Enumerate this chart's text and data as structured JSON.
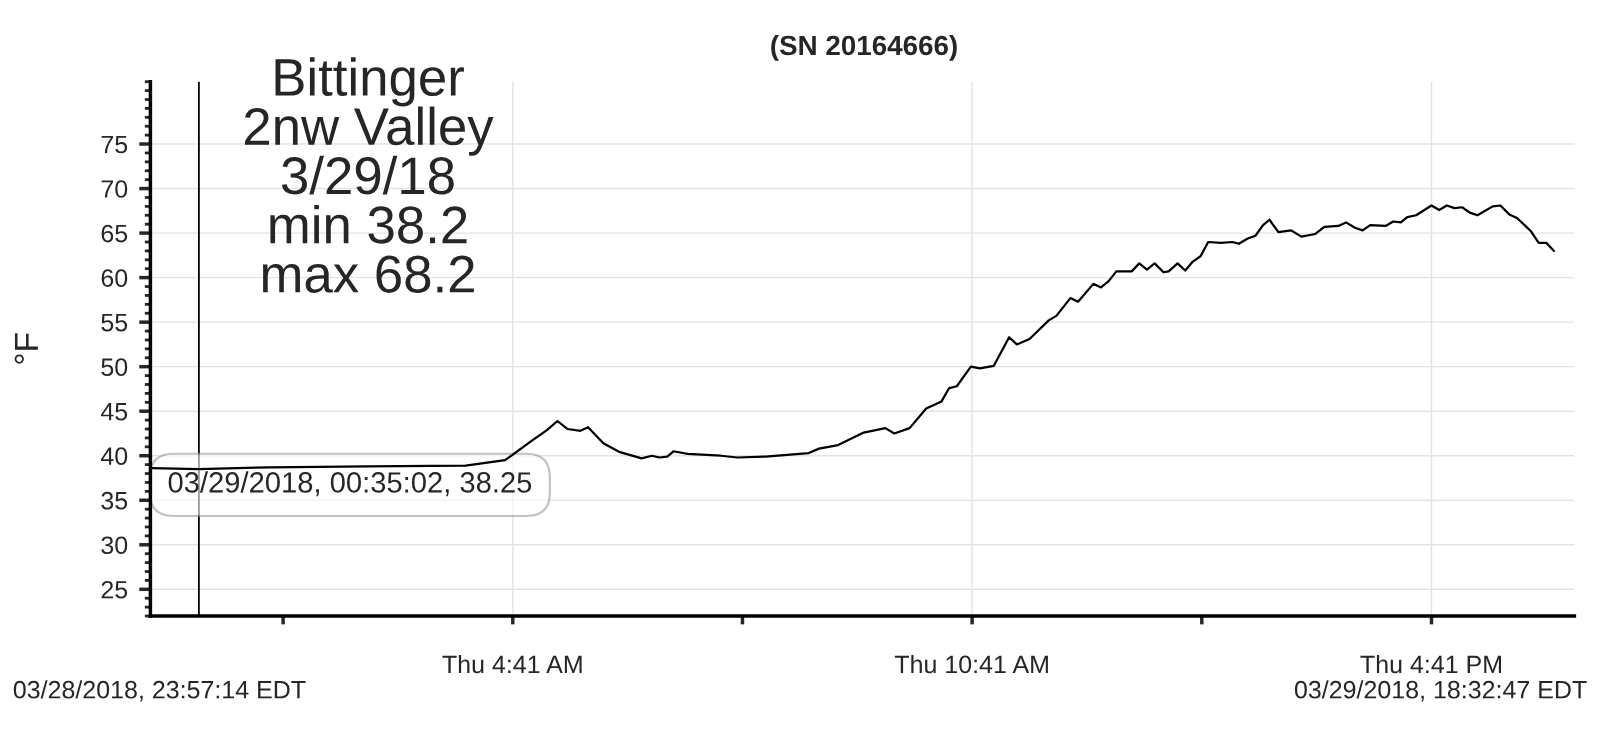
{
  "chart_data": {
    "type": "line",
    "title": "(SN 20164666)",
    "ylabel": "°F",
    "annotations": [
      "Bittinger\n2nw Valley\n3/29/18\nmin 38.2\nmax 68.2",
      {
        "text": "03/29/2018, 00:35:02, 38.25",
        "x": "2018-03-29T00:35",
        "y": 38.25
      },
      "03/28/2018, 23:57:14 EDT",
      "03/29/2018, 18:32:47 EDT"
    ],
    "x": [
      "2018-03-28T23:58",
      "2018-03-29T00:35",
      "2018-03-29T01:31",
      "2018-03-29T02:47",
      "2018-03-29T04:04",
      "2018-03-29T04:35",
      "2018-03-29T04:56",
      "2018-03-29T05:08",
      "2018-03-29T05:16",
      "2018-03-29T05:24",
      "2018-03-29T05:34",
      "2018-03-29T05:40",
      "2018-03-29T05:52",
      "2018-03-29T06:05",
      "2018-03-29T06:22",
      "2018-03-29T06:30",
      "2018-03-29T06:36",
      "2018-03-29T06:42",
      "2018-03-29T06:47",
      "2018-03-29T06:58",
      "2018-03-29T07:24",
      "2018-03-29T07:37",
      "2018-03-29T07:59",
      "2018-03-29T08:33",
      "2018-03-29T08:41",
      "2018-03-29T08:56",
      "2018-03-29T09:16",
      "2018-03-29T09:33",
      "2018-03-29T09:40",
      "2018-03-29T09:52",
      "2018-03-29T10:05",
      "2018-03-29T10:17",
      "2018-03-29T10:23",
      "2018-03-29T10:29",
      "2018-03-29T10:40",
      "2018-03-29T10:47",
      "2018-03-29T10:58",
      "2018-03-29T11:10",
      "2018-03-29T11:16",
      "2018-03-29T11:26",
      "2018-03-29T11:41",
      "2018-03-29T11:47",
      "2018-03-29T11:58",
      "2018-03-29T12:04",
      "2018-03-29T12:16",
      "2018-03-29T12:22",
      "2018-03-29T12:28",
      "2018-03-29T12:34",
      "2018-03-29T12:46",
      "2018-03-29T12:52",
      "2018-03-29T12:58",
      "2018-03-29T13:04",
      "2018-03-29T13:11",
      "2018-03-29T13:15",
      "2018-03-29T13:22",
      "2018-03-29T13:28",
      "2018-03-29T13:34",
      "2018-03-29T13:40",
      "2018-03-29T13:46",
      "2018-03-29T13:56",
      "2018-03-29T14:05",
      "2018-03-29T14:10",
      "2018-03-29T14:17",
      "2018-03-29T14:23",
      "2018-03-29T14:29",
      "2018-03-29T14:34",
      "2018-03-29T14:41",
      "2018-03-29T14:51",
      "2018-03-29T14:59",
      "2018-03-29T15:10",
      "2018-03-29T15:17",
      "2018-03-29T15:28",
      "2018-03-29T15:34",
      "2018-03-29T15:41",
      "2018-03-29T15:47",
      "2018-03-29T15:53",
      "2018-03-29T16:05",
      "2018-03-29T16:11",
      "2018-03-29T16:17",
      "2018-03-29T16:22",
      "2018-03-29T16:29",
      "2018-03-29T16:41",
      "2018-03-29T16:47",
      "2018-03-29T16:53",
      "2018-03-29T16:59",
      "2018-03-29T17:05",
      "2018-03-29T17:11",
      "2018-03-29T17:17",
      "2018-03-29T17:29",
      "2018-03-29T17:35",
      "2018-03-29T17:42",
      "2018-03-29T17:48",
      "2018-03-29T17:59",
      "2018-03-29T18:05",
      "2018-03-29T18:11",
      "2018-03-29T18:17"
    ],
    "series": [
      {
        "color": "#000000",
        "values": [
          38.6,
          38.5,
          38.7,
          38.8,
          38.9,
          39.5,
          41.7,
          42.9,
          43.9,
          43.0,
          42.8,
          43.2,
          41.4,
          40.4,
          39.7,
          40.0,
          39.8,
          39.9,
          40.5,
          40.2,
          40.0,
          39.8,
          39.9,
          40.3,
          40.8,
          41.2,
          42.6,
          43.1,
          42.5,
          43.1,
          45.3,
          46.1,
          47.6,
          47.8,
          50.0,
          49.8,
          50.1,
          53.3,
          52.5,
          53.1,
          55.2,
          55.7,
          57.7,
          57.3,
          59.3,
          58.9,
          59.6,
          60.7,
          60.7,
          61.6,
          60.9,
          61.6,
          60.6,
          60.7,
          61.6,
          60.8,
          61.8,
          62.4,
          64.0,
          63.9,
          64.0,
          63.8,
          64.4,
          64.7,
          65.9,
          66.5,
          65.1,
          65.3,
          64.6,
          64.9,
          65.7,
          65.8,
          66.2,
          65.6,
          65.3,
          65.9,
          65.8,
          66.3,
          66.2,
          66.8,
          67.0,
          68.1,
          67.6,
          68.1,
          67.8,
          67.9,
          67.3,
          67.0,
          68.0,
          68.1,
          67.1,
          66.7,
          65.2,
          63.9,
          63.9,
          63.0
        ]
      }
    ],
    "xlim": [
      "2018-03-28T23:57",
      "2018-03-29T18:33"
    ],
    "ylim": [
      22,
      82
    ],
    "xticks": [
      {
        "value": "2018-03-29T01:41",
        "label": null
      },
      {
        "value": "2018-03-29T04:41",
        "label": "Thu 4:41 AM"
      },
      {
        "value": "2018-03-29T07:41",
        "label": null
      },
      {
        "value": "2018-03-29T10:41",
        "label": "Thu 10:41 AM"
      },
      {
        "value": "2018-03-29T13:41",
        "label": null
      },
      {
        "value": "2018-03-29T16:41",
        "label": "Thu 4:41 PM"
      }
    ],
    "yticks": [
      25,
      30,
      35,
      40,
      45,
      50,
      55,
      60,
      65,
      70,
      75
    ],
    "ref_lines": [
      {
        "axis": "x",
        "value": "2018-03-29T00:35",
        "color": "#000000"
      }
    ],
    "grid": true,
    "legend": false,
    "marker": "none",
    "line_style": "solid"
  }
}
